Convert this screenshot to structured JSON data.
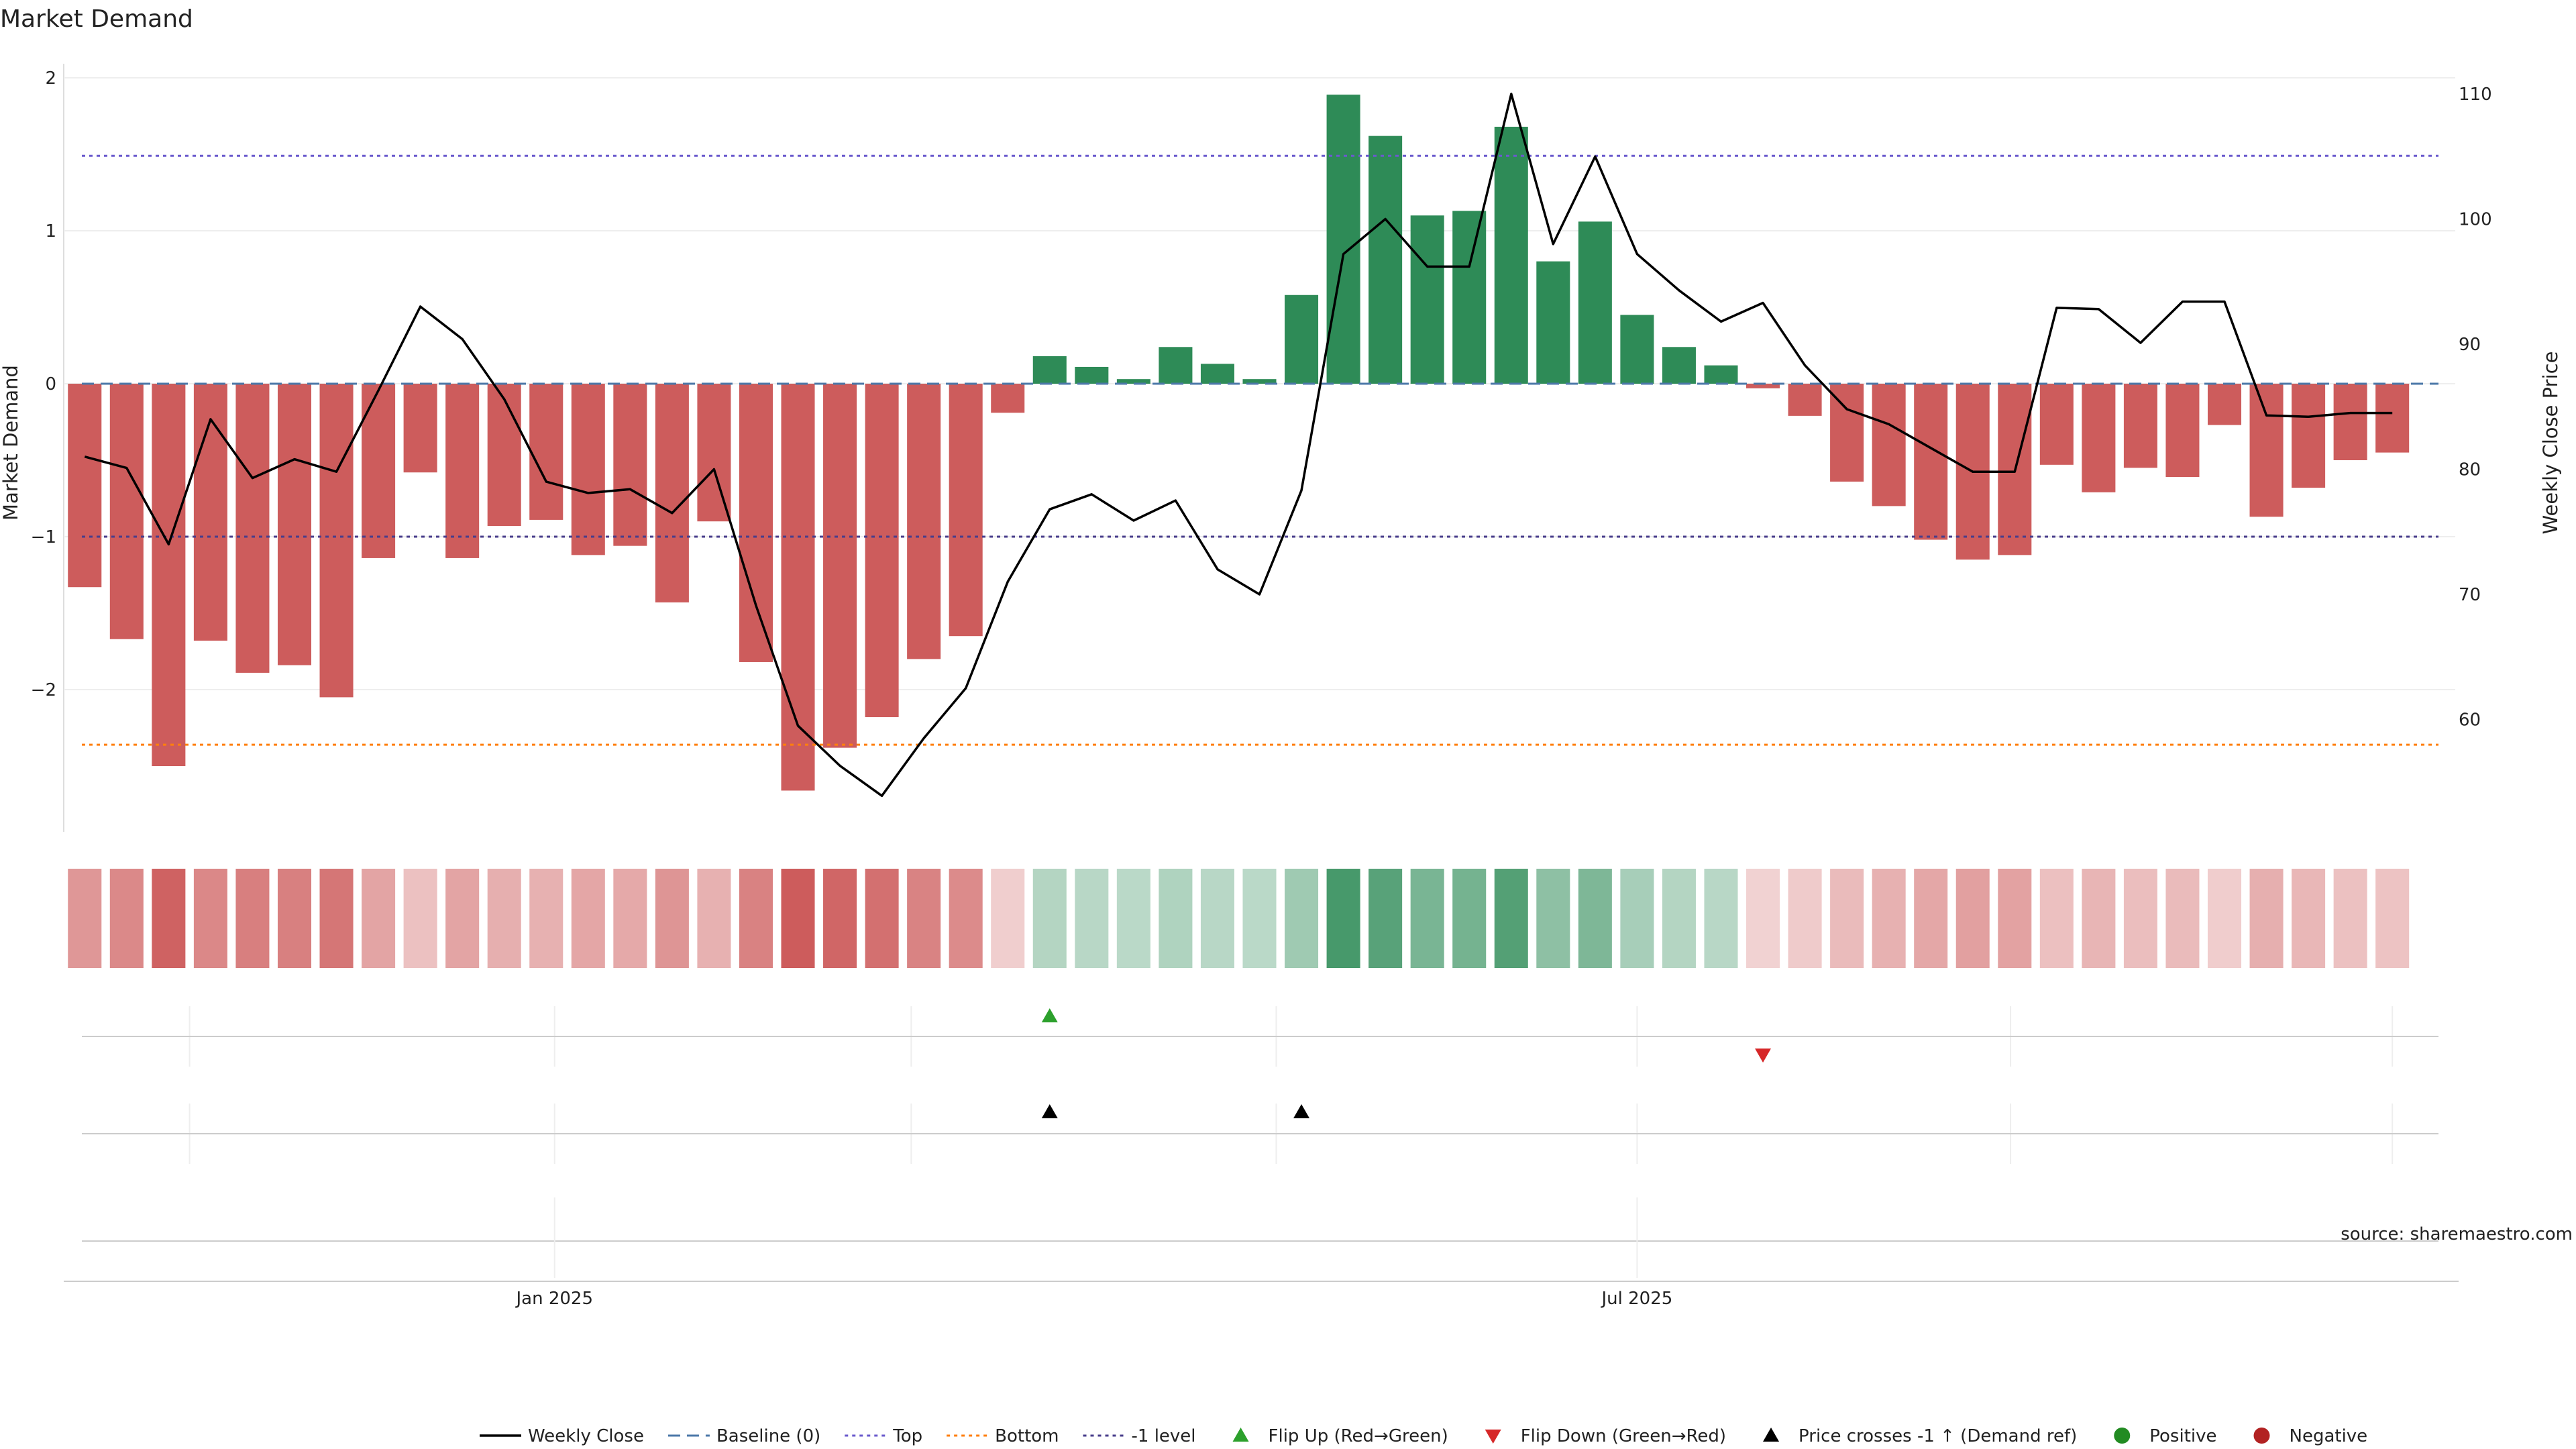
{
  "title": "Market Demand",
  "source": "source: sharemaestro.com",
  "colors": {
    "positive": "#2e8b57",
    "negative": "#cd5c5c",
    "price": "#000000",
    "baseline": "#4c78a8",
    "top": "#6a5acd",
    "bottom": "#ff7f0e",
    "minus1": "#483d8b",
    "flip_up": "#2ca02c",
    "flip_down": "#d62728",
    "cross": "#000000",
    "pos_dot": "#228b22",
    "neg_dot": "#b22222"
  },
  "chart_data": {
    "type": "bar",
    "title": "Market Demand",
    "ylabel": "Market Demand",
    "y2label": "Weekly Close Price",
    "ylim": [
      -2.92,
      2.1
    ],
    "y2lim": [
      53.2,
      111.5
    ],
    "yticks": [
      2,
      1,
      0,
      -1,
      -2
    ],
    "ytick_labels": [
      "2",
      "1",
      "0",
      "−1",
      "−2"
    ],
    "y2ticks": [
      110,
      100,
      90,
      80,
      70,
      60
    ],
    "y2tick_labels": [
      "110",
      "100",
      "90",
      "80",
      "70",
      "60"
    ],
    "xtick_labels": [
      {
        "label": "Jan 2025",
        "week": 11.7
      },
      {
        "label": "Jul 2025",
        "week": 37.5
      }
    ],
    "week_gridlines": [
      3.0,
      11.7,
      20.2,
      28.9,
      37.5,
      46.4,
      55.5
    ],
    "weeks": 57,
    "demand": [
      -1.33,
      -1.67,
      -2.5,
      -1.68,
      -1.89,
      -1.84,
      -2.05,
      -1.14,
      -0.58,
      -1.14,
      -0.93,
      -0.89,
      -1.12,
      -1.06,
      -1.43,
      -0.9,
      -1.82,
      -2.66,
      -2.38,
      -2.18,
      -1.8,
      -1.65,
      -0.19,
      0.18,
      0.11,
      0.03,
      0.24,
      0.13,
      0.03,
      0.58,
      1.89,
      1.62,
      1.1,
      1.13,
      1.68,
      0.8,
      1.06,
      0.45,
      0.24,
      0.12,
      -0.03,
      -0.21,
      -0.64,
      -0.8,
      -1.02,
      -1.15,
      -1.12,
      -0.53,
      -0.71,
      -0.55,
      -0.61,
      -0.27,
      -0.87,
      -0.68,
      -0.5,
      -0.45
    ],
    "price": [
      81,
      80.1,
      74,
      84,
      79.3,
      80.8,
      79.8,
      86.3,
      93,
      90.4,
      85.6,
      79,
      78.1,
      78.4,
      76.5,
      80,
      69.1,
      59.5,
      56.3,
      53.9,
      58.5,
      62.5,
      71,
      76.8,
      78,
      75.9,
      77.5,
      72,
      70,
      78.3,
      97.2,
      100,
      96.2,
      96.2,
      110,
      98,
      105,
      97.2,
      94.3,
      91.8,
      93.3,
      88.3,
      84.8,
      83.6,
      81.7,
      79.8,
      79.8,
      92.9,
      92.8,
      90.1,
      93.4,
      93.4,
      84.3,
      84.2,
      84.5,
      84.5
    ],
    "heatmap_strength": [
      0.55,
      0.65,
      0.95,
      0.66,
      0.74,
      0.72,
      0.8,
      0.45,
      0.23,
      0.45,
      0.36,
      0.35,
      0.44,
      0.41,
      0.56,
      0.35,
      0.71,
      1.0,
      0.93,
      0.85,
      0.7,
      0.64,
      0.12,
      0.2,
      0.18,
      0.16,
      0.22,
      0.18,
      0.16,
      0.33,
      0.85,
      0.75,
      0.55,
      0.57,
      0.78,
      0.42,
      0.53,
      0.27,
      0.2,
      0.17,
      0.1,
      0.15,
      0.28,
      0.35,
      0.42,
      0.47,
      0.46,
      0.24,
      0.31,
      0.25,
      0.28,
      0.14,
      0.36,
      0.3,
      0.23,
      0.21
    ],
    "flip_up_weeks": [
      23
    ],
    "flip_down_weeks": [
      40
    ],
    "cross_weeks": [
      23,
      29
    ],
    "reference_lines": [
      {
        "name": "Baseline (0)",
        "value": 0
      },
      {
        "name": "Top",
        "value": 1.49
      },
      {
        "name": "Bottom",
        "value": -2.36
      },
      {
        "name": "-1 level",
        "value": -1
      }
    ],
    "legend": [
      {
        "label": "Weekly Close",
        "kind": "line"
      },
      {
        "label": "Baseline (0)",
        "kind": "dash"
      },
      {
        "label": "Top",
        "kind": "dot-top"
      },
      {
        "label": "Bottom",
        "kind": "dot-bottom"
      },
      {
        "label": "-1 level",
        "kind": "dot-minus1"
      },
      {
        "label": "Flip Up (Red→Green)",
        "kind": "tri-up"
      },
      {
        "label": "Flip Down (Green→Red)",
        "kind": "tri-down"
      },
      {
        "label": "Price crosses -1 ↑ (Demand ref)",
        "kind": "tri-cross"
      },
      {
        "label": "Positive",
        "kind": "dot-pos"
      },
      {
        "label": "Negative",
        "kind": "dot-neg"
      }
    ],
    "legend_position": "bottom"
  }
}
